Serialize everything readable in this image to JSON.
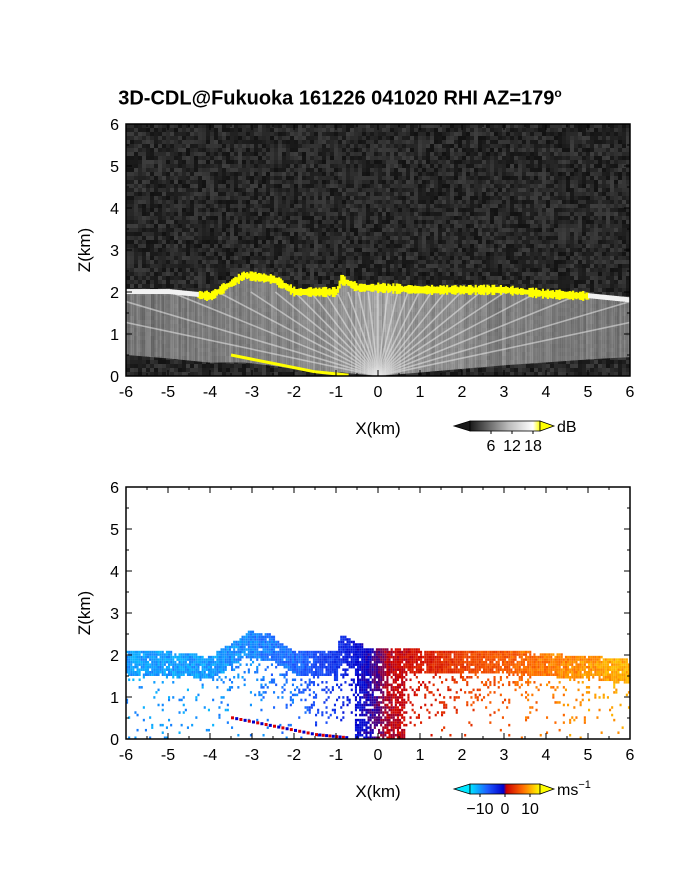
{
  "figure": {
    "title": "3D-CDL@Fukuoka 161226 041020 RHI AZ=179",
    "title_degree": "o"
  },
  "chart_data": [
    {
      "type": "heatmap",
      "name": "snr",
      "xlabel": "X(km)",
      "ylabel": "Z(km)",
      "xlim": [
        -6,
        6
      ],
      "ylim": [
        0,
        6
      ],
      "xticks": [
        "-6",
        "-5",
        "-4",
        "-3",
        "-2",
        "-1",
        "0",
        "1",
        "2",
        "3",
        "4",
        "5",
        "6"
      ],
      "yticks": [
        "0",
        "1",
        "2",
        "3",
        "4",
        "5",
        "6"
      ],
      "colorbar": {
        "unit": "dB",
        "ticks": [
          "6",
          "12",
          "18"
        ],
        "tick_values": [
          6,
          12,
          18
        ],
        "range": [
          0,
          20
        ],
        "colors": [
          "#1a1a1a",
          "#ffffff",
          "#ffff00"
        ]
      },
      "background_level_db": 2,
      "cloud_base_km": [
        [
          -6.0,
          2.0
        ],
        [
          -5.0,
          2.0
        ],
        [
          -4.0,
          1.9
        ],
        [
          -3.2,
          2.4
        ],
        [
          -2.5,
          2.3
        ],
        [
          -2.0,
          2.0
        ],
        [
          -1.0,
          2.0
        ],
        [
          -0.9,
          2.3
        ],
        [
          -0.5,
          2.1
        ],
        [
          0.0,
          2.1
        ],
        [
          1.0,
          2.05
        ],
        [
          2.0,
          2.05
        ],
        [
          3.0,
          2.05
        ],
        [
          4.0,
          1.95
        ],
        [
          5.0,
          1.9
        ],
        [
          6.0,
          1.8
        ]
      ],
      "low_streak_km": [
        [
          -3.5,
          0.5
        ],
        [
          -2.5,
          0.3
        ],
        [
          -1.5,
          0.1
        ],
        [
          -0.7,
          0.02
        ]
      ]
    },
    {
      "type": "heatmap",
      "name": "doppler_velocity",
      "xlabel": "X(km)",
      "ylabel": "Z(km)",
      "xlim": [
        -6,
        6
      ],
      "ylim": [
        0,
        6
      ],
      "xticks": [
        "-6",
        "-5",
        "-4",
        "-3",
        "-2",
        "-1",
        "0",
        "1",
        "2",
        "3",
        "4",
        "5",
        "6"
      ],
      "yticks": [
        "0",
        "1",
        "2",
        "3",
        "4",
        "5",
        "6"
      ],
      "colorbar": {
        "unit": "ms",
        "unit_exponent": "−1",
        "ticks": [
          "−10",
          "0",
          "10"
        ],
        "tick_values": [
          -10,
          0,
          10
        ],
        "range": [
          -14,
          14
        ],
        "colors": [
          "#00e6ff",
          "#1e5bff",
          "#0000cc",
          "#cc0000",
          "#ff6a00",
          "#ffff00"
        ]
      },
      "velocity_field_ms": [
        [
          -6.0,
          -11
        ],
        [
          -4.0,
          -11
        ],
        [
          -2.0,
          -9
        ],
        [
          -1.0,
          -6
        ],
        [
          -0.2,
          -2
        ],
        [
          0.0,
          0
        ],
        [
          0.2,
          2
        ],
        [
          1.0,
          4
        ],
        [
          2.0,
          6
        ],
        [
          4.0,
          9
        ],
        [
          6.0,
          11
        ]
      ]
    }
  ]
}
